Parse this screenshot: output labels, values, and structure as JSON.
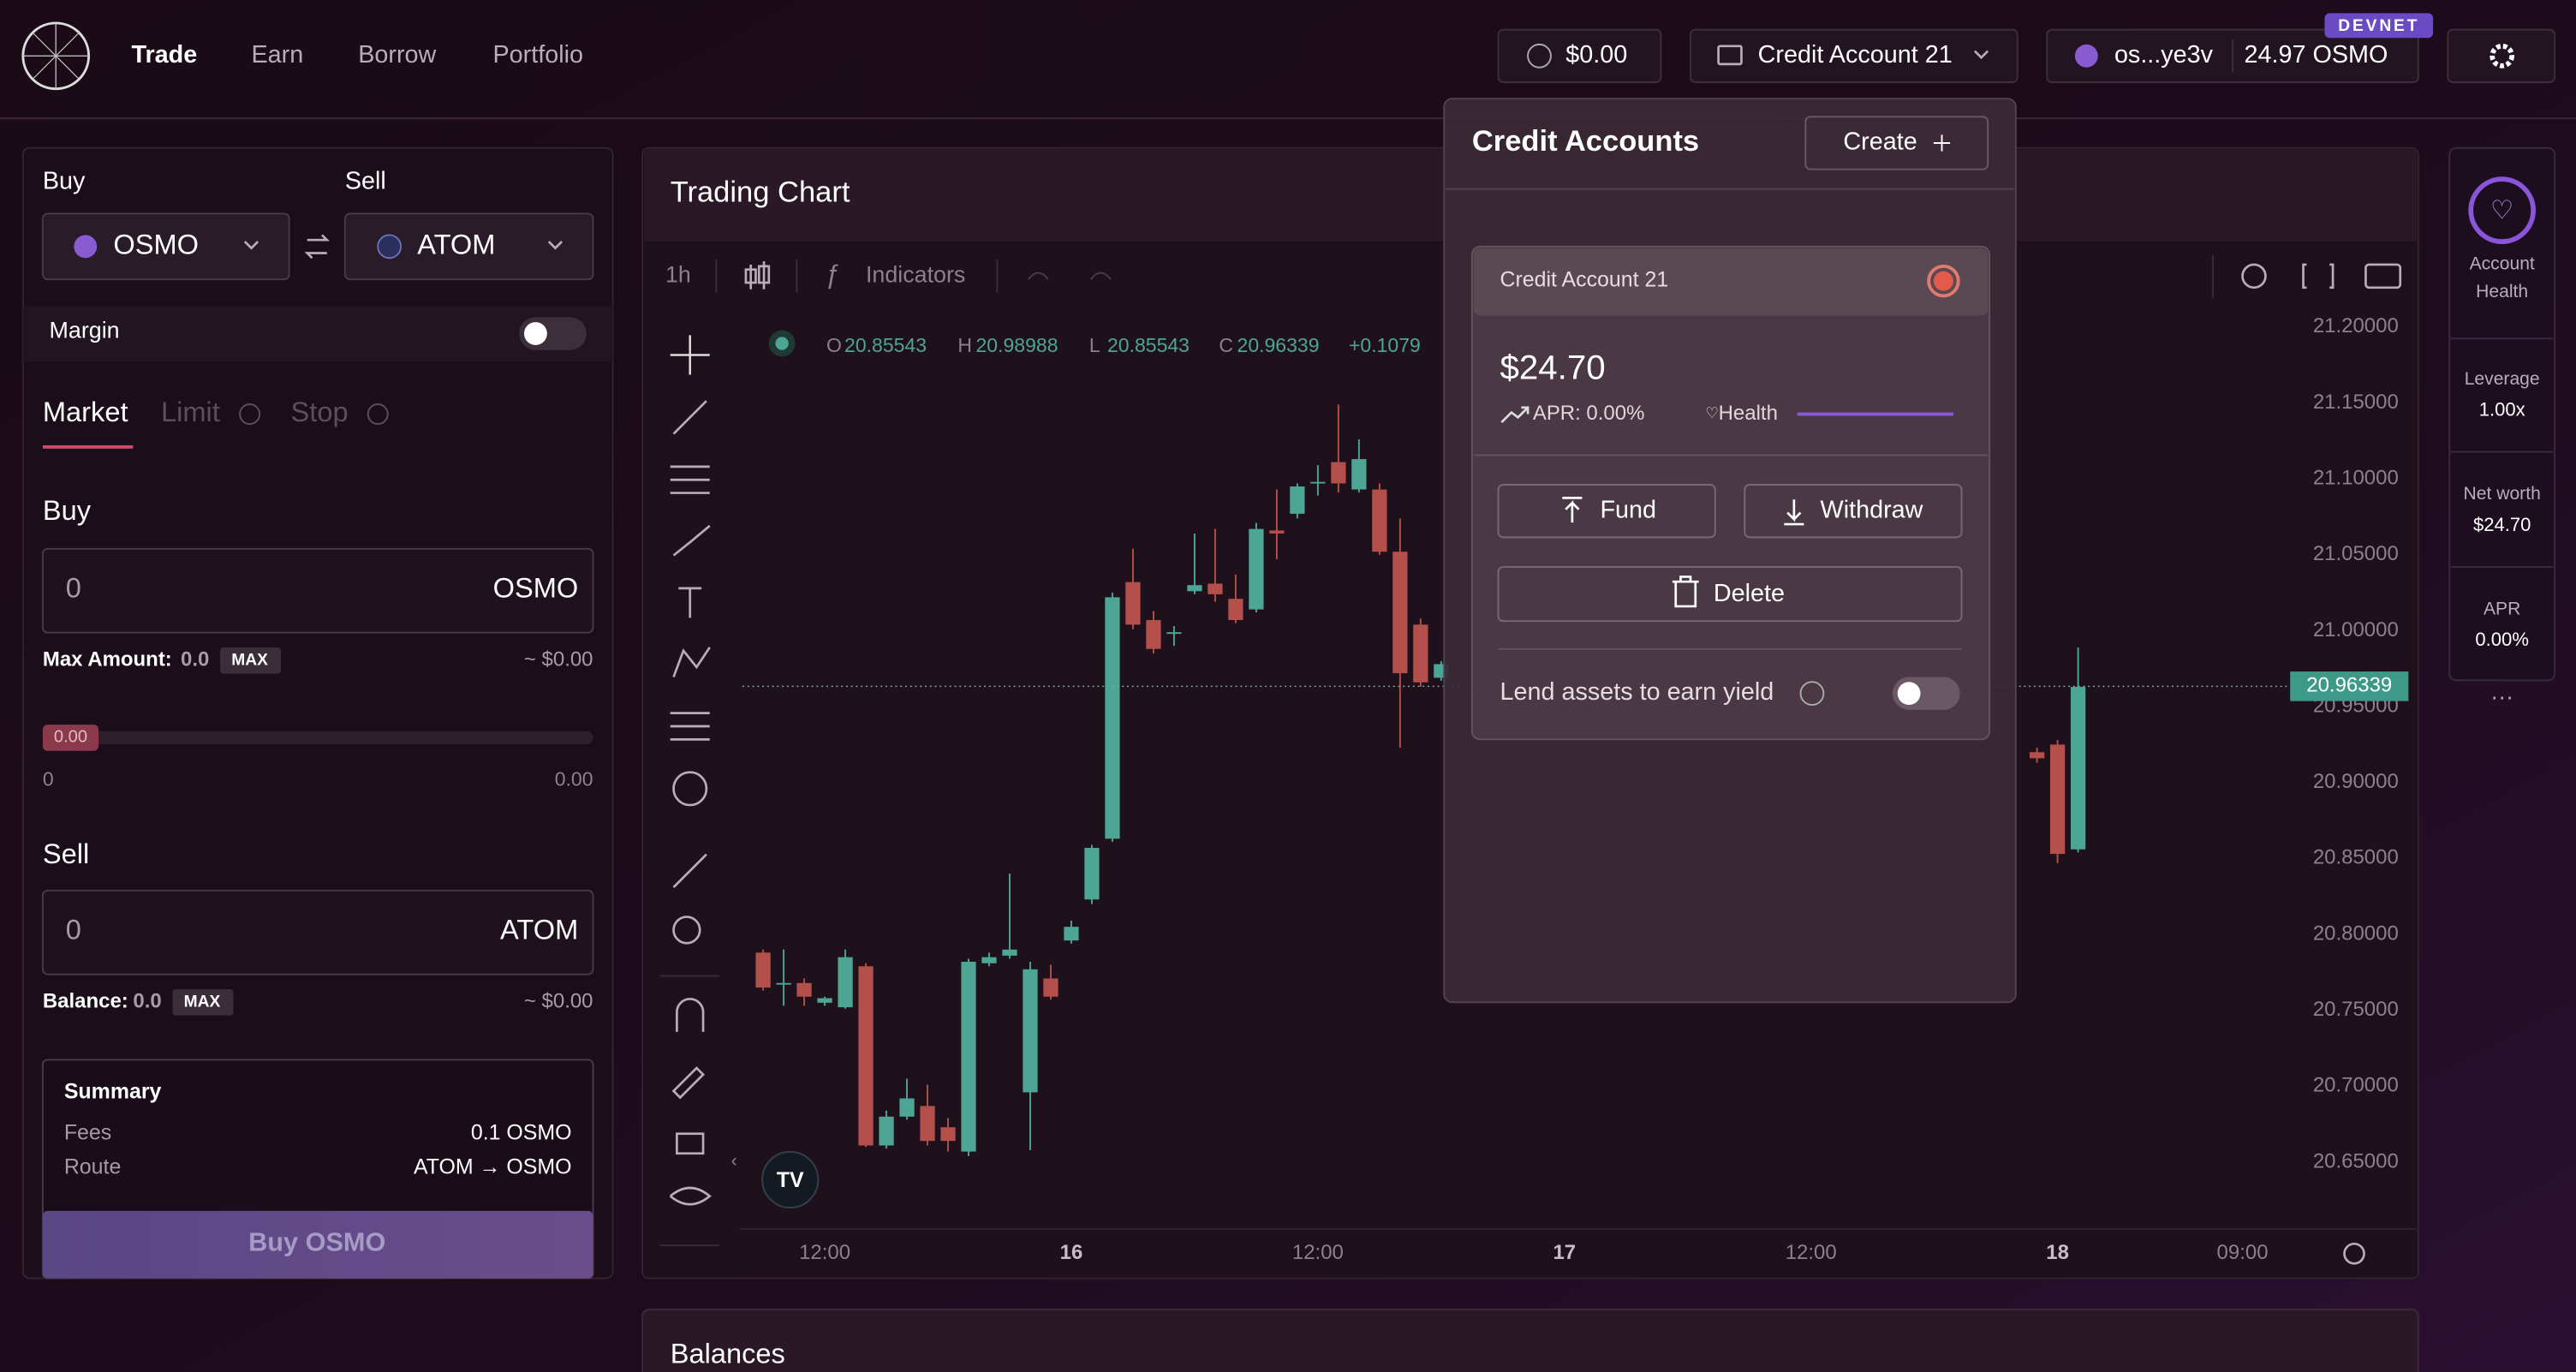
{
  "header": {
    "nav": [
      "Trade",
      "Earn",
      "Borrow",
      "Portfolio"
    ],
    "balance_button": "$0.00",
    "account_button": "Credit Account 21",
    "wallet_address": "os...ye3v",
    "wallet_balance": "24.97 OSMO",
    "network_badge": "DEVNET"
  },
  "trade_panel": {
    "buy_label": "Buy",
    "sell_label": "Sell",
    "buy_asset": "OSMO",
    "sell_asset": "ATOM",
    "margin_label": "Margin",
    "tabs": [
      "Market",
      "Limit",
      "Stop"
    ],
    "buy_section": {
      "title": "Buy",
      "input_value": "0",
      "asset": "OSMO",
      "max_label": "Max Amount:",
      "max_value": "0.0",
      "max_button": "MAX",
      "usd_value": "~ $0.00"
    },
    "slider": {
      "badge": "0.00",
      "min": "0",
      "max": "0.00"
    },
    "sell_section": {
      "title": "Sell",
      "input_value": "0",
      "asset": "ATOM",
      "balance_label": "Balance:",
      "balance_value": "0.0",
      "max_button": "MAX",
      "usd_value": "~ $0.00"
    },
    "summary": {
      "title": "Summary",
      "rows": [
        [
          "Fees",
          "0.1 OSMO"
        ],
        [
          "Route",
          "ATOM → OSMO"
        ]
      ]
    },
    "submit_button": "Buy OSMO"
  },
  "chart_data": {
    "type": "candlestick",
    "title": "Trading Chart",
    "interval": "1h",
    "indicators_label": "Indicators",
    "ohlc_legend": [
      {
        "key": "O",
        "value": 20.85543
      },
      {
        "key": "H",
        "value": 20.98988
      },
      {
        "key": "L",
        "value": 20.85543
      },
      {
        "key": "C",
        "value": 20.96339
      }
    ],
    "change": "+0.1079",
    "up_color": "#4da595",
    "down_color": "#b3504b",
    "x": [
      0,
      1,
      2,
      3,
      4,
      5,
      6,
      7,
      8,
      9,
      10,
      11,
      12,
      13,
      14,
      15,
      16,
      17,
      18,
      19,
      20,
      21,
      22,
      23,
      24,
      25,
      26,
      27,
      28,
      29,
      30,
      31,
      32,
      33,
      62,
      63,
      64
    ],
    "open": [
      20.788,
      20.768,
      20.768,
      20.755,
      20.752,
      20.779,
      20.661,
      20.68,
      20.687,
      20.673,
      20.657,
      20.781,
      20.786,
      20.696,
      20.771,
      20.796,
      20.823,
      20.863,
      21.032,
      21.007,
      20.999,
      21.026,
      21.031,
      21.021,
      21.014,
      21.066,
      21.077,
      21.098,
      21.111,
      21.093,
      21.093,
      21.052,
      21.004,
      20.969,
      20.92,
      20.925,
      20.856
    ],
    "high": [
      20.79,
      20.79,
      20.771,
      20.759,
      20.79,
      20.781,
      20.684,
      20.705,
      20.701,
      20.679,
      20.784,
      20.788,
      20.84,
      20.782,
      20.78,
      20.809,
      20.859,
      21.025,
      21.054,
      21.013,
      21.003,
      21.064,
      21.067,
      21.037,
      21.071,
      21.093,
      21.097,
      21.109,
      21.149,
      21.126,
      21.097,
      21.074,
      21.008,
      20.98,
      20.923,
      20.928,
      20.989
    ],
    "low": [
      20.763,
      20.753,
      20.753,
      20.753,
      20.751,
      20.66,
      20.659,
      20.678,
      20.661,
      20.657,
      20.654,
      20.779,
      20.784,
      20.658,
      20.757,
      20.794,
      20.82,
      20.861,
      21.001,
      20.985,
      20.99,
      21.024,
      21.019,
      21.005,
      21.012,
      21.047,
      21.074,
      21.089,
      21.091,
      21.091,
      21.05,
      20.923,
      20.963,
      20.967,
      20.913,
      20.847,
      20.854
    ],
    "close": [
      20.765,
      20.768,
      20.759,
      20.758,
      20.785,
      20.661,
      20.68,
      20.692,
      20.664,
      20.664,
      20.782,
      20.785,
      20.79,
      20.777,
      20.759,
      20.805,
      20.857,
      21.022,
      21.004,
      20.988,
      20.999,
      21.03,
      21.024,
      21.007,
      21.067,
      21.064,
      21.095,
      21.098,
      21.097,
      21.113,
      21.052,
      20.972,
      20.966,
      20.978,
      20.916,
      20.853,
      20.963
    ],
    "last_price": 20.96339,
    "xlim": [
      -1,
      74
    ],
    "xticks": [
      {
        "value": 3,
        "label": "12:00"
      },
      {
        "value": 15,
        "label": "16"
      },
      {
        "value": 27,
        "label": "12:00"
      },
      {
        "value": 39,
        "label": "17"
      },
      {
        "value": 51,
        "label": "12:00"
      },
      {
        "value": 63,
        "label": "18"
      },
      {
        "value": 72,
        "label": "09:00"
      }
    ],
    "ylim": [
      20.606,
      21.253
    ],
    "yticks": [
      {
        "value": 20.65,
        "label": "20.65000"
      },
      {
        "value": 20.7,
        "label": "20.70000"
      },
      {
        "value": 20.75,
        "label": "20.75000"
      },
      {
        "value": 20.8,
        "label": "20.80000"
      },
      {
        "value": 20.85,
        "label": "20.85000"
      },
      {
        "value": 20.9,
        "label": "20.90000"
      },
      {
        "value": 20.95,
        "label": "20.95000"
      },
      {
        "value": 21,
        "label": "21.00000"
      },
      {
        "value": 21.05,
        "label": "21.05000"
      },
      {
        "value": 21.1,
        "label": "21.10000"
      },
      {
        "value": 21.15,
        "label": "21.15000"
      },
      {
        "value": 21.2,
        "label": "21.20000"
      }
    ]
  },
  "credit_accounts_popup": {
    "title": "Credit Accounts",
    "create_button": "Create",
    "account_name": "Credit Account 21",
    "value": "$24.70",
    "apr": "APR: 0.00%",
    "health_label": "Health",
    "fund_button": "Fund",
    "withdraw_button": "Withdraw",
    "delete_button": "Delete",
    "lend_label": "Lend assets to earn yield"
  },
  "account_sidebar": {
    "health_label": [
      "Account",
      "Health"
    ],
    "stats": [
      [
        "Leverage",
        "1.00x"
      ],
      [
        "Net worth",
        "$24.70"
      ],
      [
        "APR",
        "0.00%"
      ]
    ]
  },
  "balances_panel": {
    "title": "Balances"
  }
}
